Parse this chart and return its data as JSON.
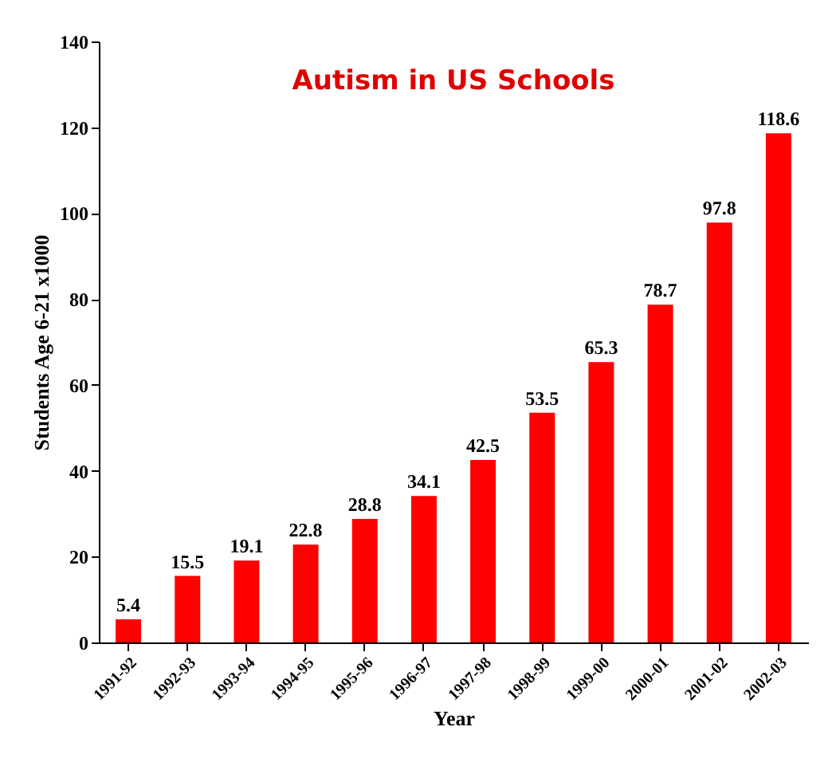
{
  "chart_data": {
    "type": "bar",
    "title": "Autism in US Schools",
    "xlabel": "Year",
    "ylabel": "Students Age 6-21 x1000",
    "categories": [
      "1991-92",
      "1992-93",
      "1993-94",
      "1994-95",
      "1995-96",
      "1996-97",
      "1997-98",
      "1998-99",
      "1999-00",
      "2000-01",
      "2001-02",
      "2002-03"
    ],
    "values": [
      5.4,
      15.5,
      19.1,
      22.8,
      28.8,
      34.1,
      42.5,
      53.5,
      65.3,
      78.7,
      97.8,
      118.6
    ],
    "color": "#ff0000",
    "ylim": [
      0,
      140
    ],
    "yticks": [
      0,
      20,
      40,
      60,
      80,
      100,
      120,
      140
    ],
    "grid": false,
    "data_labels": true
  }
}
